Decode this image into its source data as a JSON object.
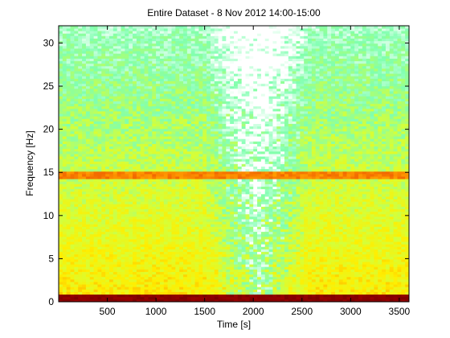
{
  "chart_data": {
    "type": "heatmap",
    "title": "Entire Dataset - 8 Nov 2012 14:00-15:00",
    "xlabel": "Time [s]",
    "ylabel": "Frequency [Hz]",
    "xlim": [
      0,
      3600
    ],
    "ylim": [
      0,
      32
    ],
    "xticks": [
      500,
      1000,
      1500,
      2000,
      2500,
      3000,
      3500
    ],
    "yticks": [
      0,
      5,
      10,
      15,
      20,
      25,
      30
    ],
    "colormap": [
      "#ffffff",
      "#7fffb0",
      "#d4ff3a",
      "#ffee00",
      "#ff9900",
      "#d40000",
      "#7a0000"
    ],
    "features": [
      {
        "kind": "band",
        "freq_range": [
          0,
          0.8
        ],
        "level": 1.0
      },
      {
        "kind": "band",
        "freq_range": [
          14.2,
          15.0
        ],
        "level": 0.72
      },
      {
        "kind": "low-power-region",
        "time_range": [
          1500,
          2600
        ],
        "level": 0.2
      }
    ],
    "grid": false
  }
}
